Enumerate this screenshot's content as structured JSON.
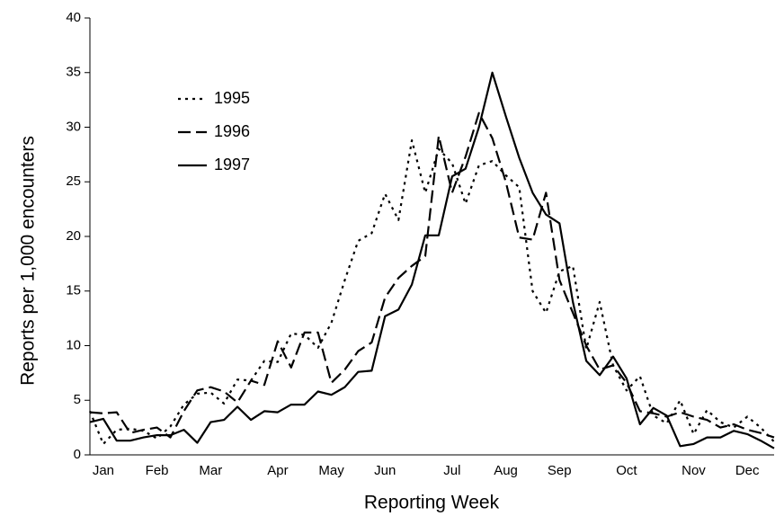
{
  "chart_data": {
    "type": "line",
    "x_label": "Reporting Week",
    "y_label": "Reports per 1,000 encounters",
    "categories": [
      null,
      "Jan",
      null,
      null,
      null,
      "Feb",
      null,
      null,
      null,
      "Mar",
      null,
      null,
      null,
      null,
      "Apr",
      null,
      null,
      null,
      "May",
      null,
      null,
      null,
      "Jun",
      null,
      null,
      null,
      null,
      "Jul",
      null,
      null,
      null,
      "Aug",
      null,
      null,
      null,
      "Sep",
      null,
      null,
      null,
      null,
      "Oct",
      null,
      null,
      null,
      null,
      "Nov",
      null,
      null,
      null,
      "Dec",
      null,
      null
    ],
    "ylim": [
      0,
      40
    ],
    "yticks": [
      0,
      5,
      10,
      15,
      20,
      25,
      30,
      35,
      40
    ],
    "legend": "upper-left",
    "series": [
      {
        "name": "1995",
        "color": "#000000",
        "dash": "3,5",
        "values": [
          4.0,
          1.0,
          2.3,
          2.4,
          2.2,
          1.5,
          2.6,
          4.6,
          5.6,
          5.7,
          4.7,
          6.9,
          6.8,
          8.6,
          8.5,
          11.1,
          11.0,
          9.8,
          12.1,
          16.0,
          19.6,
          20.3,
          23.9,
          21.5,
          28.8,
          24.0,
          28.0,
          26.7,
          23.0,
          26.5,
          26.9,
          25.6,
          24.5,
          15.0,
          13.0,
          16.8,
          17.3,
          9.7,
          14.0,
          8.2,
          5.9,
          7.2,
          3.6,
          2.9,
          5.0,
          1.9,
          4.1,
          3.0,
          2.5,
          3.5,
          2.5,
          1.2
        ]
      },
      {
        "name": "1996",
        "color": "#000000",
        "dash": "14,6",
        "values": [
          3.9,
          3.8,
          3.9,
          2.0,
          2.3,
          2.5,
          1.6,
          4.0,
          5.9,
          6.2,
          5.8,
          4.8,
          6.8,
          6.4,
          10.4,
          8.0,
          11.2,
          11.2,
          6.6,
          7.8,
          9.5,
          10.3,
          14.4,
          16.2,
          17.3,
          18.2,
          29.2,
          24.0,
          27.3,
          31.3,
          29.0,
          25.0,
          19.9,
          19.7,
          24.0,
          16.0,
          13.0,
          10.0,
          7.8,
          8.2,
          6.6,
          4.0,
          3.8,
          3.5,
          3.9,
          3.5,
          3.2,
          2.5,
          2.8,
          2.3,
          2.0,
          1.6
        ]
      },
      {
        "name": "1997",
        "color": "#000000",
        "dash": "none",
        "values": [
          3.0,
          3.3,
          1.3,
          1.3,
          1.6,
          1.8,
          1.8,
          2.3,
          1.1,
          3.0,
          3.2,
          4.4,
          3.2,
          4.0,
          3.9,
          4.6,
          4.6,
          5.8,
          5.5,
          6.2,
          7.6,
          7.7,
          12.7,
          13.3,
          15.6,
          20.1,
          20.1,
          25.5,
          26.2,
          30.0,
          35.0,
          31.0,
          27.2,
          24.0,
          22.0,
          21.2,
          14.0,
          8.6,
          7.3,
          9.0,
          7.0,
          2.8,
          4.3,
          3.6,
          0.8,
          1.0,
          1.6,
          1.6,
          2.2,
          1.9,
          1.3,
          0.6
        ]
      }
    ]
  }
}
